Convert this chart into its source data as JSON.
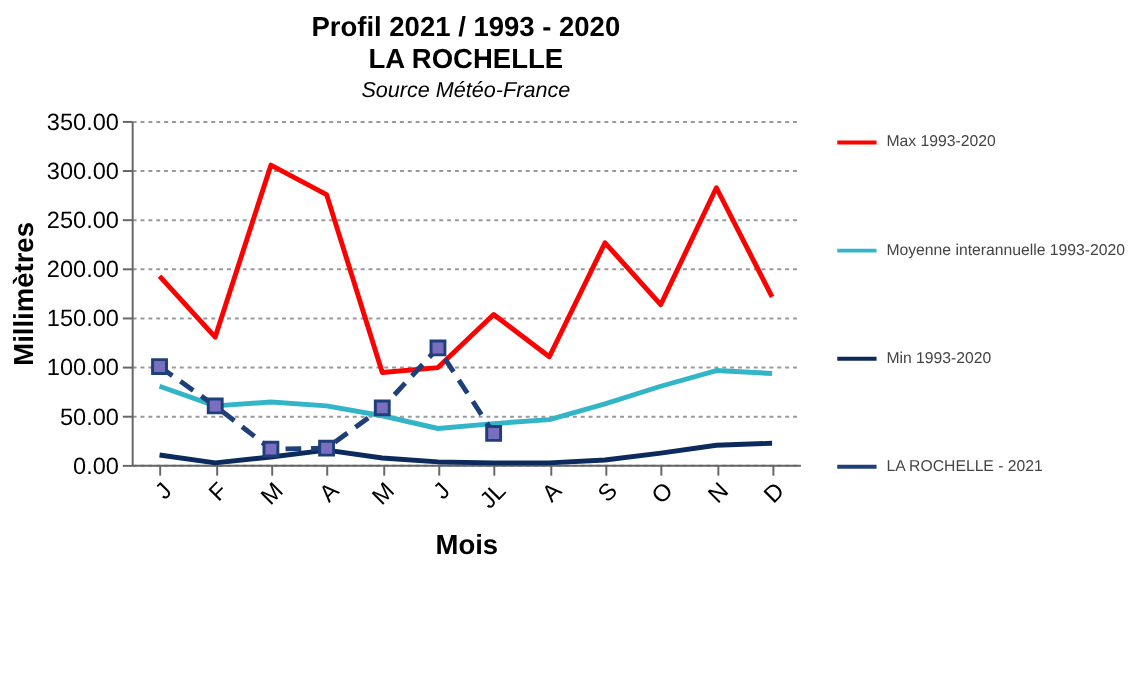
{
  "chart_data": {
    "type": "line",
    "title": "Profil 2021 / 1993 - 2020\nLA ROCHELLE",
    "subtitle": "Source Météo-France",
    "xlabel": "Mois",
    "ylabel": "Millimètres",
    "categories": [
      "J",
      "F",
      "M",
      "A",
      "M",
      "J",
      "JL",
      "A",
      "S",
      "O",
      "N",
      "D"
    ],
    "series": [
      {
        "name": "Max 1993-2020",
        "color": "#ff0000",
        "values": [
          192,
          130,
          305,
          275,
          94,
          99,
          153,
          110,
          226,
          163,
          282,
          171
        ]
      },
      {
        "name": "Moyenne interannuelle 1993-2020",
        "color": "#33b5c8",
        "values": [
          80,
          60,
          64,
          60,
          50,
          37,
          42,
          46,
          62,
          80,
          96,
          93
        ]
      },
      {
        "name": "Min 1993-2020",
        "color": "#0d2a5c",
        "values": [
          10,
          2,
          8,
          15,
          7,
          3,
          2,
          2,
          5,
          12,
          20,
          22
        ]
      },
      {
        "name": "LA ROCHELLE - 2021",
        "color": "#1f3f7a",
        "marker": "square",
        "line_style": "dashed",
        "values": [
          100,
          60,
          16,
          17,
          58,
          119,
          32,
          null,
          null,
          null,
          null,
          null
        ]
      }
    ],
    "ylim": [
      0,
      350
    ],
    "yticks": [
      {
        "value": 0,
        "label": "0.00"
      },
      {
        "value": 50,
        "label": "50.00"
      },
      {
        "value": 100,
        "label": "100.00"
      },
      {
        "value": 150,
        "label": "150.00"
      },
      {
        "value": 200,
        "label": "200.00"
      },
      {
        "value": 250,
        "label": "250.00"
      },
      {
        "value": 300,
        "label": "300.00"
      },
      {
        "value": 350,
        "label": "350.00"
      }
    ],
    "grid": "y",
    "legend": "right"
  }
}
